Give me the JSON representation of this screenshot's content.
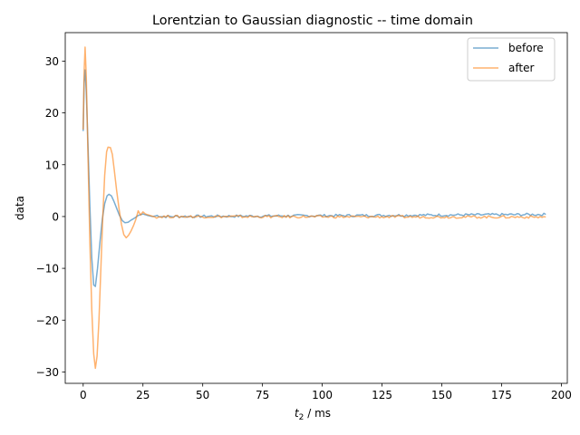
{
  "chart_data": {
    "type": "line",
    "title": "Lorentzian to Gaussian diagnostic -- time domain",
    "xlabel_main": "t",
    "xlabel_sub": "2",
    "xlabel_rest": " / ms",
    "ylabel": "data",
    "xlim": [
      -7.5,
      202.5
    ],
    "ylim": [
      -32.2,
      35.5
    ],
    "xticks": [
      0,
      25,
      50,
      75,
      100,
      125,
      150,
      175,
      200
    ],
    "yticks": [
      -30,
      -20,
      -10,
      0,
      10,
      20,
      30
    ],
    "xtick_labels": [
      "0",
      "25",
      "50",
      "75",
      "100",
      "125",
      "150",
      "175",
      "200"
    ],
    "ytick_labels": [
      "−30",
      "−20",
      "−10",
      "0",
      "10",
      "20",
      "30"
    ],
    "legend_position": "top-right",
    "noise_amplitude": 0.25,
    "series": [
      {
        "name": "before",
        "color": "#1f77b4",
        "points": [
          [
            0,
            16.5
          ],
          [
            0.4,
            26
          ],
          [
            0.8,
            28.3
          ],
          [
            1.3,
            24
          ],
          [
            2,
            14
          ],
          [
            2.8,
            2
          ],
          [
            3.6,
            -8
          ],
          [
            4.4,
            -13.2
          ],
          [
            5.1,
            -13.5
          ],
          [
            6,
            -10
          ],
          [
            7,
            -5
          ],
          [
            8,
            -0.5
          ],
          [
            9,
            2.5
          ],
          [
            10,
            4
          ],
          [
            10.8,
            4.3
          ],
          [
            11.8,
            4
          ],
          [
            12.8,
            3
          ],
          [
            14,
            1.6
          ],
          [
            15.2,
            0.2
          ],
          [
            16.4,
            -0.8
          ],
          [
            17.5,
            -1.2
          ],
          [
            18.8,
            -1.1
          ],
          [
            20,
            -0.7
          ],
          [
            21.5,
            -0.3
          ],
          [
            23,
            0.2
          ],
          [
            25,
            0.5
          ],
          [
            27,
            0.2
          ],
          [
            29,
            0
          ],
          [
            31,
            0.2
          ],
          [
            33,
            0
          ],
          [
            193.5,
            0.4
          ]
        ]
      },
      {
        "name": "after",
        "color": "#ff7f0e",
        "points": [
          [
            0,
            16.8
          ],
          [
            0.4,
            28
          ],
          [
            0.8,
            32.7
          ],
          [
            1.3,
            27
          ],
          [
            2,
            12
          ],
          [
            2.8,
            -5
          ],
          [
            3.6,
            -18
          ],
          [
            4.4,
            -26.5
          ],
          [
            5.1,
            -29.3
          ],
          [
            5.8,
            -27
          ],
          [
            6.6,
            -20
          ],
          [
            7.4,
            -10
          ],
          [
            8.2,
            0
          ],
          [
            9,
            8
          ],
          [
            9.8,
            12.5
          ],
          [
            10.4,
            13.4
          ],
          [
            11.4,
            13.3
          ],
          [
            12.2,
            12
          ],
          [
            13,
            9
          ],
          [
            14,
            5
          ],
          [
            15,
            1.5
          ],
          [
            16,
            -1.5
          ],
          [
            17,
            -3.5
          ],
          [
            18,
            -4.1
          ],
          [
            19,
            -3.6
          ],
          [
            20,
            -2.8
          ],
          [
            21,
            -1.8
          ],
          [
            22,
            -0.6
          ],
          [
            23,
            1.1
          ],
          [
            24,
            0.3
          ],
          [
            25,
            0.9
          ],
          [
            26,
            0.5
          ],
          [
            28,
            0.2
          ],
          [
            30,
            -0.1
          ],
          [
            33,
            0
          ],
          [
            193.5,
            -0.1
          ]
        ]
      }
    ]
  }
}
